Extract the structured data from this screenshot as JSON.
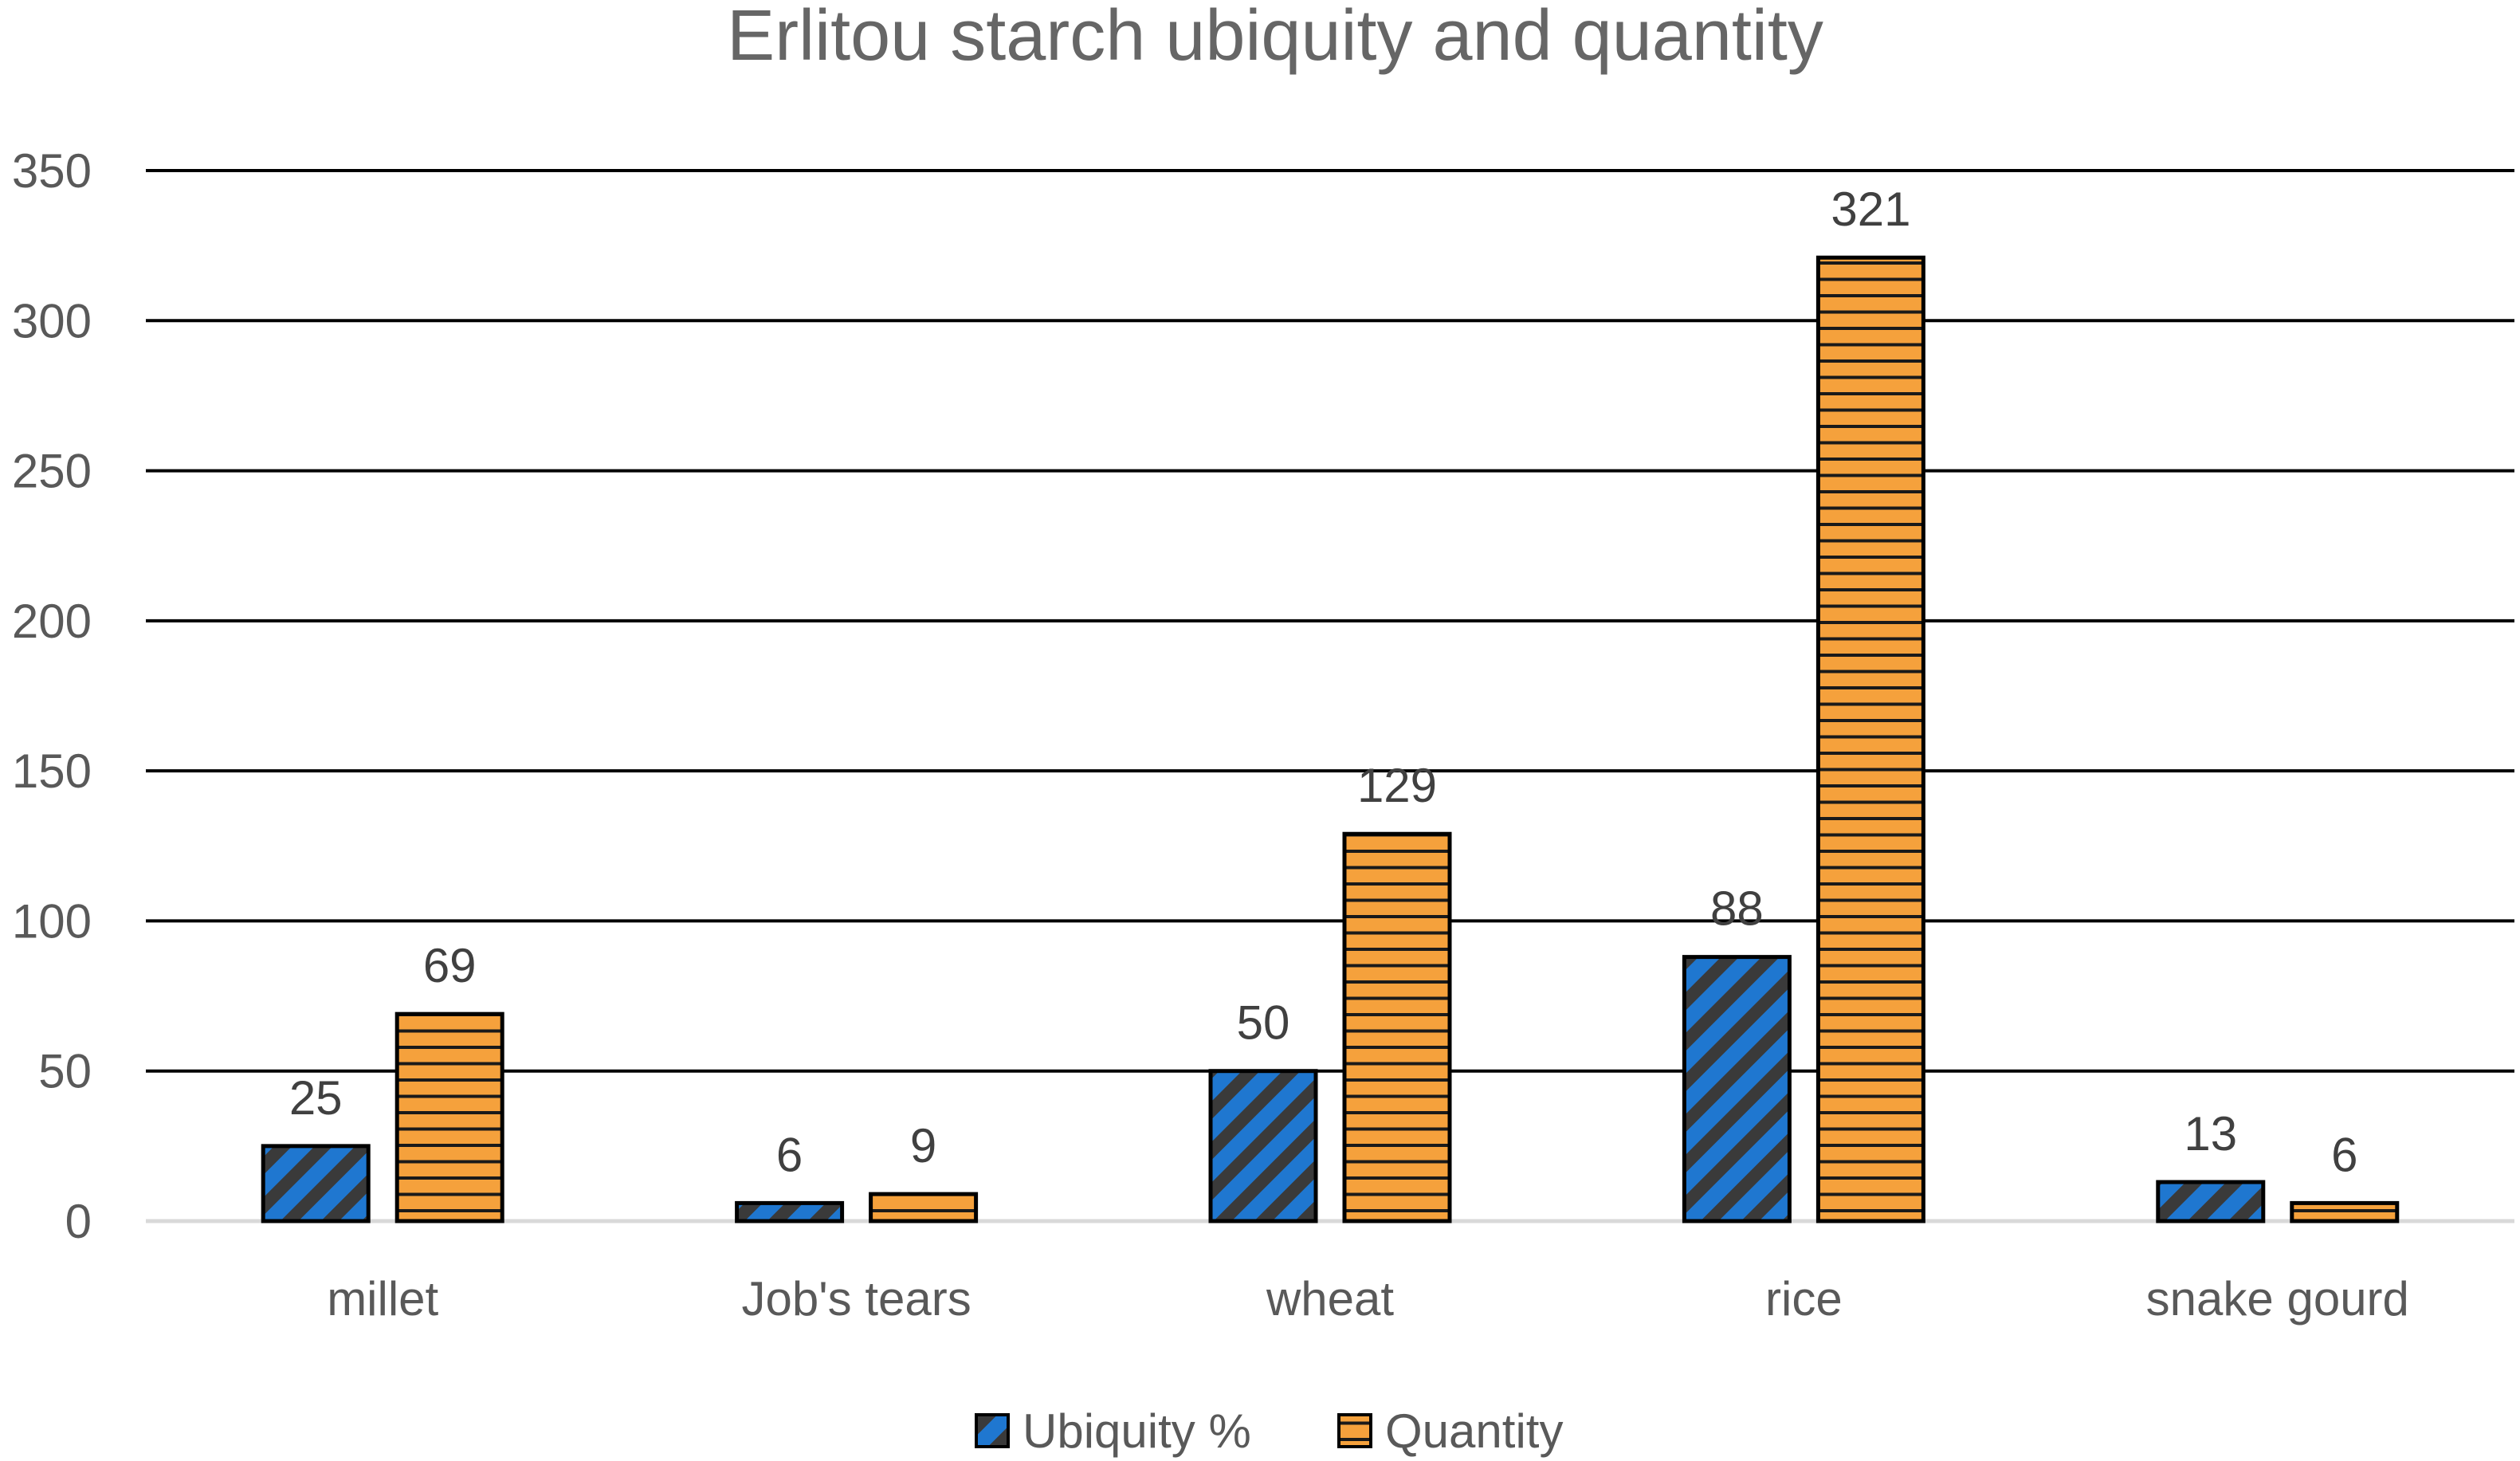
{
  "chart_data": {
    "type": "bar",
    "title": "Erlitou starch ubiquity and quantity",
    "categories": [
      "millet",
      "Job's tears",
      "wheat",
      "rice",
      "snake gourd"
    ],
    "series": [
      {
        "name": "Ubiquity %",
        "values": [
          25,
          6,
          50,
          88,
          13
        ],
        "labels": [
          "25",
          "6",
          "50",
          "88",
          "13"
        ],
        "color": "#1F77D0",
        "pattern": "diagonal-stripes",
        "stripe_color": "#3A3A3A"
      },
      {
        "name": "Quantity",
        "values": [
          69,
          9,
          129,
          321,
          6
        ],
        "labels": [
          "69",
          "9",
          "129",
          "321",
          "6"
        ],
        "color": "#F5A13C",
        "pattern": "horizontal-stripes",
        "stripe_color": "#1A1A1A"
      }
    ],
    "ylim": [
      0,
      350
    ],
    "yticks": [
      "0",
      "50",
      "100",
      "150",
      "200",
      "250",
      "300",
      "350"
    ],
    "xlabel": "",
    "ylabel": "",
    "grid": true,
    "legend": "bottom-center"
  }
}
